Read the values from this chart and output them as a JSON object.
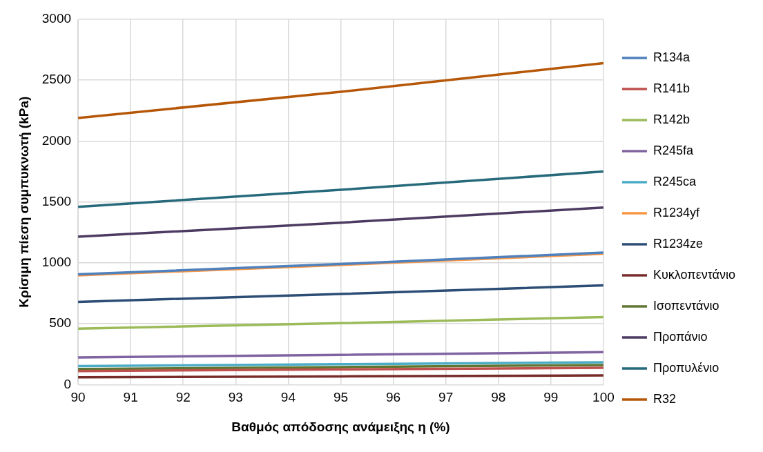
{
  "chart_data": {
    "type": "line",
    "xlabel": "Βαθμός απόδοσης ανάμειξης η (%)",
    "ylabel": "Κρίσιμη πίεση συμπυκνωτή (kPa)",
    "x": [
      90,
      95,
      100
    ],
    "series": [
      {
        "name": "R134a",
        "color": "#4f81bd",
        "values": [
          906,
          991,
          1084
        ]
      },
      {
        "name": "R141b",
        "color": "#c0504d",
        "values": [
          112,
          125,
          138
        ]
      },
      {
        "name": "R142b",
        "color": "#9bbb59",
        "values": [
          460,
          505,
          555
        ]
      },
      {
        "name": "R245fa",
        "color": "#8064a2",
        "values": [
          223,
          245,
          267
        ]
      },
      {
        "name": "R245ca",
        "color": "#4bacc6",
        "values": [
          153,
          168,
          184
        ]
      },
      {
        "name": "R1234yf",
        "color": "#f79646",
        "values": [
          898,
          983,
          1074
        ]
      },
      {
        "name": "R1234ze",
        "color": "#2c4d75",
        "values": [
          680,
          745,
          815
        ]
      },
      {
        "name": "Κυκλοπεντάνιο",
        "color": "#772c2a",
        "values": [
          61,
          68,
          76
        ]
      },
      {
        "name": "Ισοπεντάνιο",
        "color": "#5f7530",
        "values": [
          128,
          144,
          161
        ]
      },
      {
        "name": "Προπάνιο",
        "color": "#4d3b62",
        "values": [
          1215,
          1330,
          1455
        ]
      },
      {
        "name": "Προπυλένιο",
        "color": "#276a7c",
        "values": [
          1460,
          1600,
          1750
        ]
      },
      {
        "name": "R32",
        "color": "#b65708",
        "values": [
          2190,
          2405,
          2640
        ]
      }
    ],
    "xlim": [
      90,
      100
    ],
    "xticks": [
      90,
      91,
      92,
      93,
      94,
      95,
      96,
      97,
      98,
      99,
      100
    ],
    "ylim": [
      0,
      3000
    ],
    "yticks": [
      0,
      500,
      1000,
      1500,
      2000,
      2500,
      3000
    ],
    "grid": true,
    "legend": "right",
    "marker": "none",
    "line_style": "solid"
  }
}
